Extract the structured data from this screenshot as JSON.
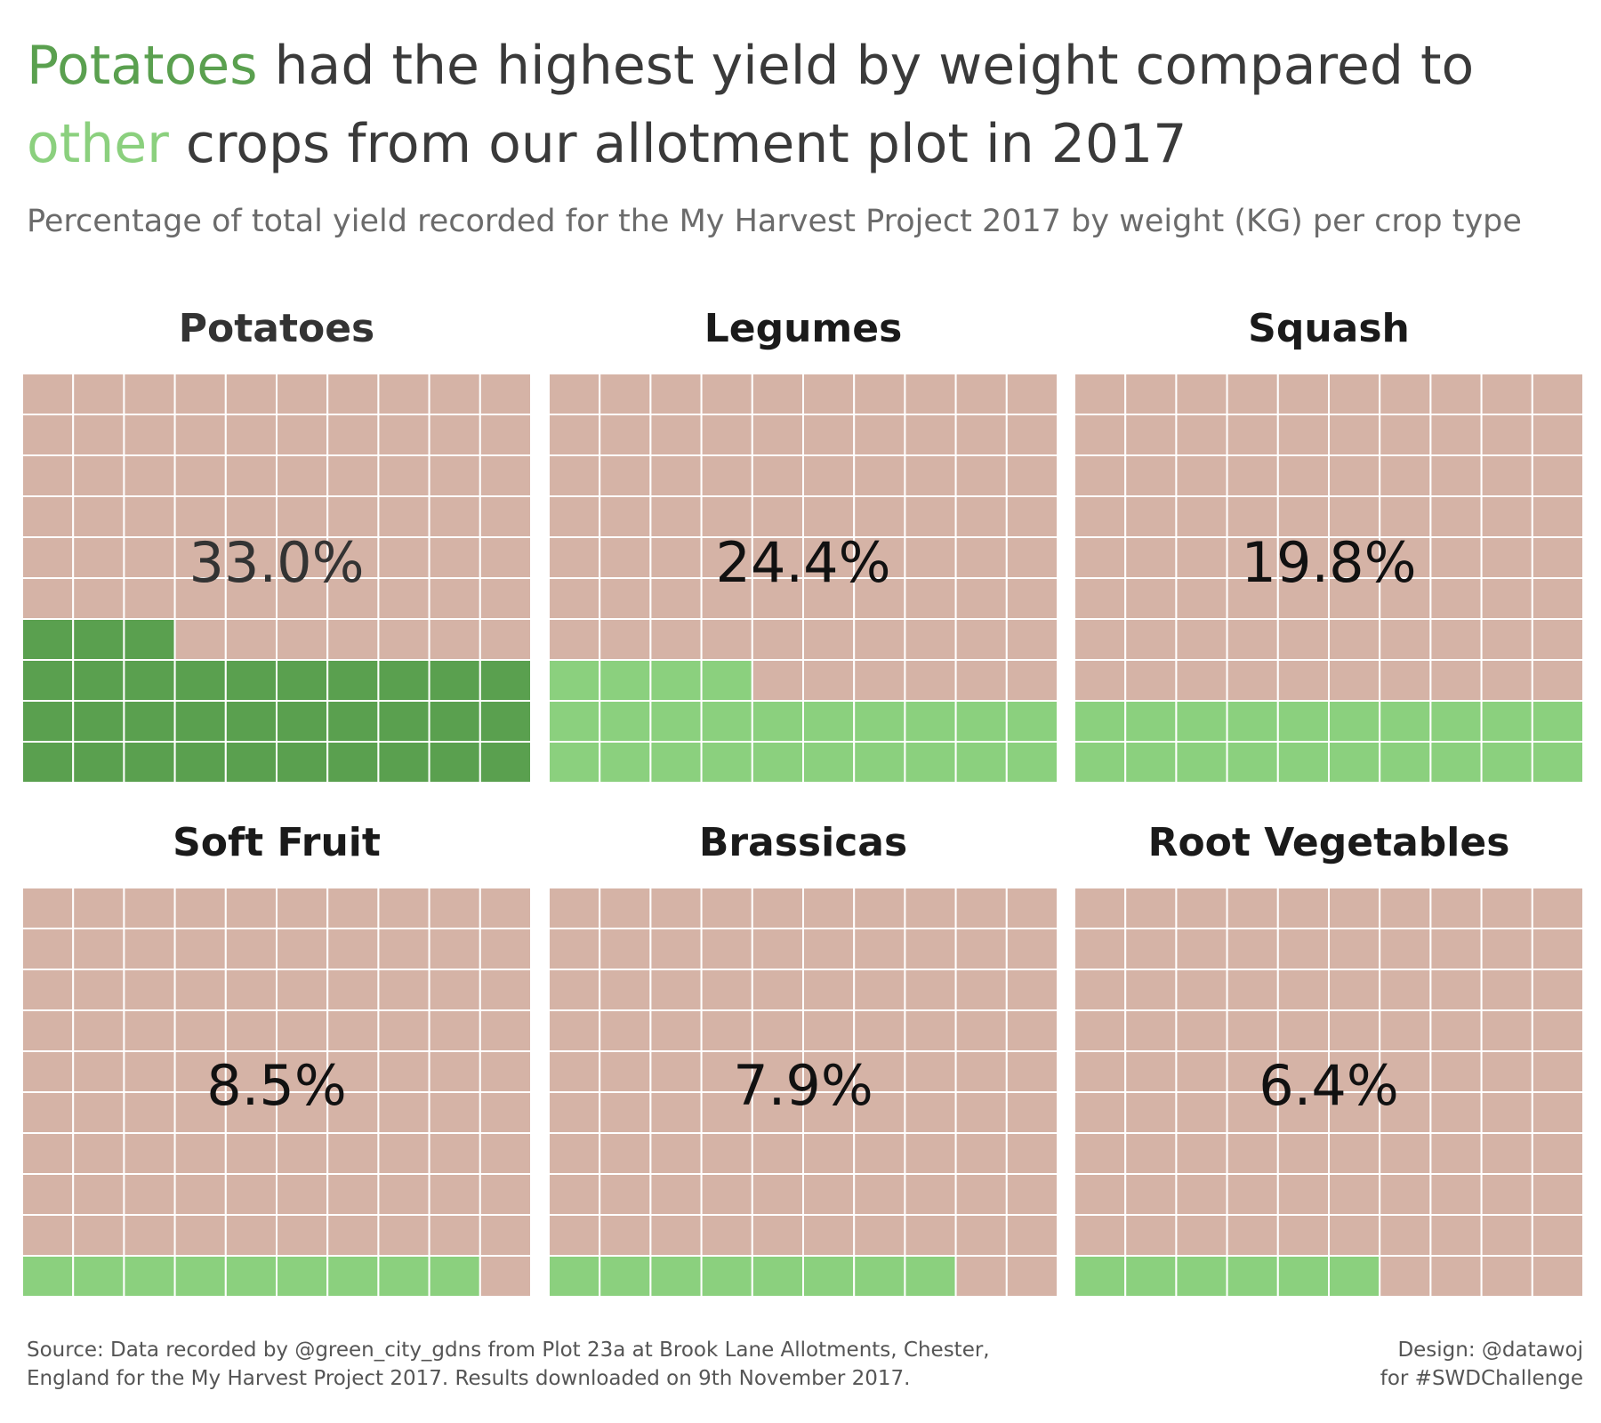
{
  "title": {
    "highlight_1": "Potatoes",
    "part_1": " had the highest yield by weight compared to",
    "highlight_2": "other",
    "part_2": " crops from our allotment plot in 2017"
  },
  "subtitle": "Percentage of total yield recorded for the My Harvest Project 2017 by weight (KG) per crop type",
  "colors": {
    "potatoes_fill": "#5aa04f",
    "other_fill": "#8bd07e",
    "empty": "#d5b3a6",
    "grid_line": "#ffffff"
  },
  "chart_data": {
    "type": "waffle",
    "grid": "10x10",
    "unit": "%",
    "categories": [
      "Potatoes",
      "Legumes",
      "Squash",
      "Soft Fruit",
      "Brassicas",
      "Root Vegetables"
    ],
    "series": [
      {
        "values": [
          33.0,
          24.4,
          19.8,
          8.5,
          7.9,
          6.4
        ],
        "labels": [
          "33.0%",
          "24.4%",
          "19.8%",
          "8.5%",
          "7.9%",
          "6.4%"
        ]
      }
    ]
  },
  "source": {
    "line_1": "Source: Data recorded by @green_city_gdns from Plot 23a at Brook Lane Allotments, Chester,",
    "line_2": "England for the My Harvest Project 2017.  Results downloaded on 9th November 2017."
  },
  "credit": {
    "line_1": "Design: @datawoj",
    "line_2": "for #SWDChallenge"
  }
}
